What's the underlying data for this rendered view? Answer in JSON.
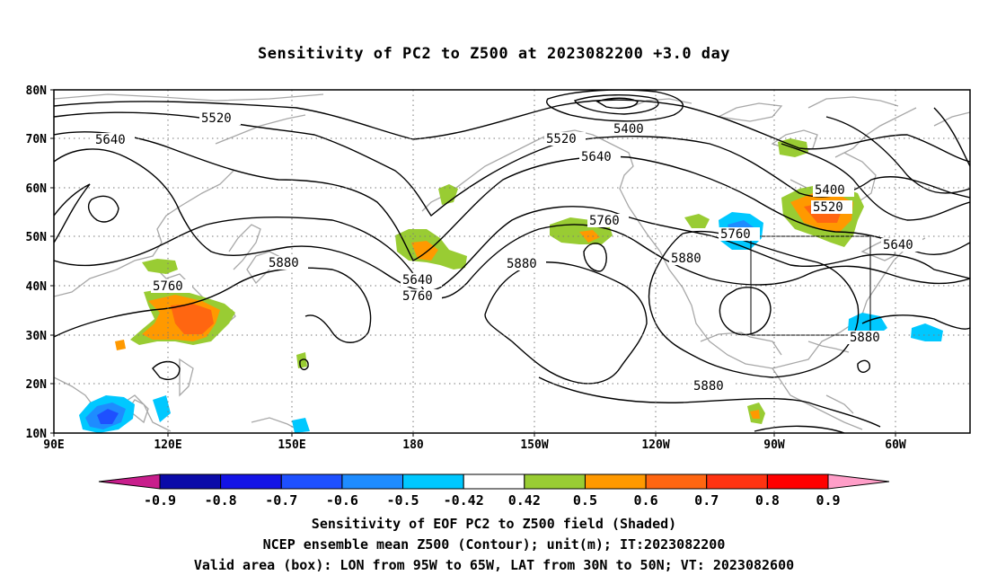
{
  "title": "Sensitivity of PC2 to Z500 at 2023082200 +3.0 day",
  "lat_labels": [
    "80N",
    "70N",
    "60N",
    "50N",
    "40N",
    "30N",
    "20N",
    "10N"
  ],
  "lon_labels": [
    "90E",
    "120E",
    "150E",
    "180",
    "150W",
    "120W",
    "90W",
    "60W"
  ],
  "contour_labels": [
    {
      "text": "5520",
      "id": "a"
    },
    {
      "text": "5640",
      "id": "b"
    },
    {
      "text": "5520",
      "id": "c"
    },
    {
      "text": "5400",
      "id": "d"
    },
    {
      "text": "5640",
      "id": "e"
    },
    {
      "text": "5400",
      "id": "f"
    },
    {
      "text": "5520",
      "id": "g"
    },
    {
      "text": "5760",
      "id": "h"
    },
    {
      "text": "5760",
      "id": "i"
    },
    {
      "text": "5640",
      "id": "j"
    },
    {
      "text": "5880",
      "id": "k"
    },
    {
      "text": "5760",
      "id": "l"
    },
    {
      "text": "5640",
      "id": "m"
    },
    {
      "text": "5760",
      "id": "n"
    },
    {
      "text": "5880",
      "id": "o"
    },
    {
      "text": "5880",
      "id": "p"
    },
    {
      "text": "5880",
      "id": "q"
    },
    {
      "text": "5880",
      "id": "r"
    }
  ],
  "colorbar": {
    "labels": [
      "-0.9",
      "-0.8",
      "-0.7",
      "-0.6",
      "-0.5",
      "-0.42",
      "0.42",
      "0.5",
      "0.6",
      "0.7",
      "0.8",
      "0.9"
    ],
    "colors": [
      "#0a0aa8",
      "#1414e6",
      "#1e50ff",
      "#1e8cff",
      "#00c8ff",
      "#ffffff",
      "#99cc33",
      "#ff9900",
      "#ff6611",
      "#ff3311",
      "#ff0000"
    ],
    "low_arrow_color": "#c81e8c",
    "high_arrow_color": "#ff9ec8"
  },
  "captions": [
    "Sensitivity of EOF PC2 to Z500 field (Shaded)",
    "NCEP ensemble mean Z500 (Contour); unit(m); IT:2023082200",
    "Valid area (box): LON from 95W to 65W, LAT from 30N to 50N; VT: 2023082600"
  ]
}
